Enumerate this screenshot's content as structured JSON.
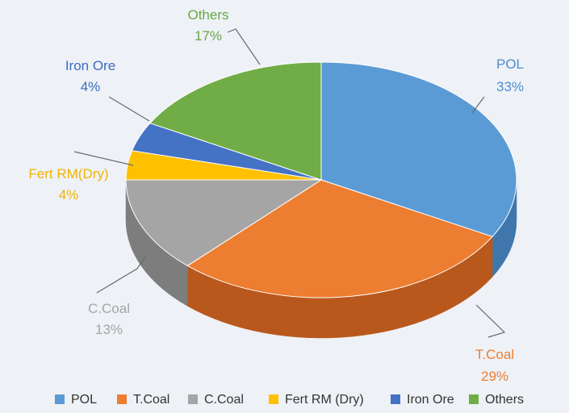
{
  "chart_data": {
    "type": "pie",
    "style": "3d",
    "legend_position": "bottom",
    "slices": [
      {
        "name": "POL",
        "legend": "POL",
        "label": "POL",
        "pct_label": "33%",
        "value": 33,
        "color": "#5b9bd5",
        "side": "#3f77ad",
        "text_color": "#4d8fd0"
      },
      {
        "name": "T.Coal",
        "legend": "T.Coal",
        "label": "T.Coal",
        "pct_label": "29%",
        "value": 29,
        "color": "#ed7d31",
        "side": "#b9581c",
        "text_color": "#ed7d31"
      },
      {
        "name": "C.Coal",
        "legend": "C.Coal",
        "label": "C.Coal",
        "pct_label": "13%",
        "value": 13,
        "color": "#a5a5a5",
        "side": "#7d7d7d",
        "text_color": "#a6a6a6"
      },
      {
        "name": "Fert RM",
        "legend": "Fert RM (Dry)",
        "label": "Fert RM(Dry)",
        "pct_label": "4%",
        "value": 4,
        "color": "#ffc000",
        "side": "#c79400",
        "text_color": "#f0b400"
      },
      {
        "name": "Iron Ore",
        "legend": "Iron Ore",
        "label": "Iron Ore",
        "pct_label": "4%",
        "value": 4,
        "color": "#4472c4",
        "side": "#2f5597",
        "text_color": "#3d6cc0"
      },
      {
        "name": "Others",
        "legend": "Others",
        "label": "Others",
        "pct_label": "17%",
        "value": 17,
        "color": "#70ad47",
        "side": "#4f8a2f",
        "text_color": "#6aa843"
      }
    ]
  }
}
